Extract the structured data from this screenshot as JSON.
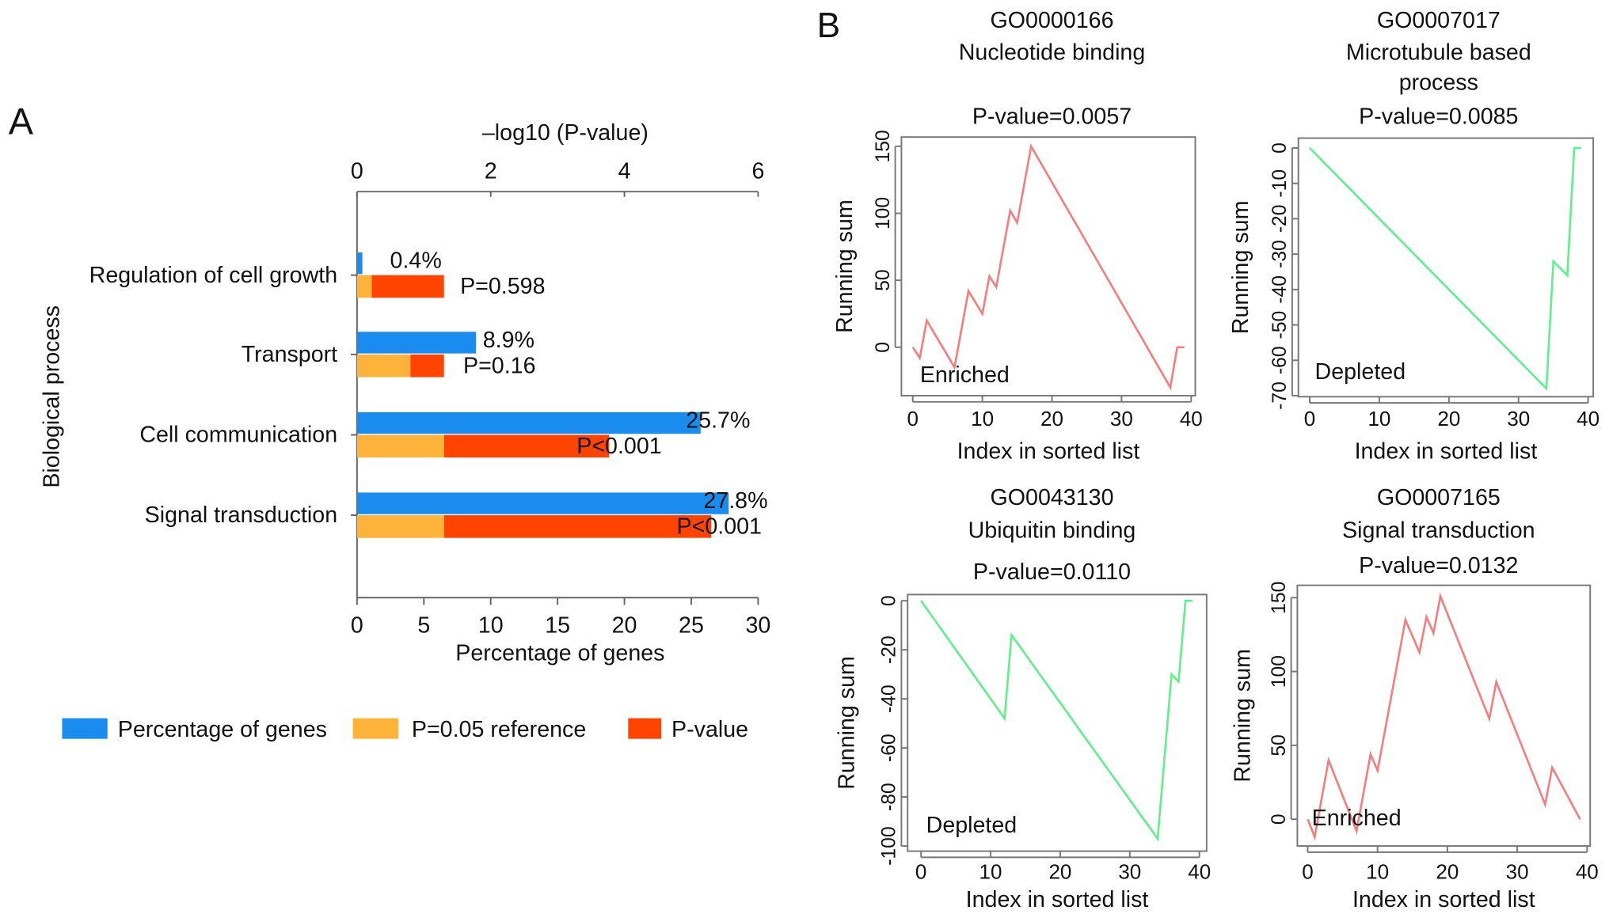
{
  "panel_labels": {
    "a": "A",
    "b": "B"
  },
  "chart_data": [
    {
      "type": "bar",
      "orientation": "horizontal",
      "top_axis_title": "–log10 (P-value)",
      "top_axis_ticks": [
        0,
        2,
        4,
        6
      ],
      "top_axis_range": [
        0,
        6
      ],
      "xlabel": "Percentage of genes",
      "x_ticks": [
        0,
        5,
        10,
        15,
        20,
        25,
        30
      ],
      "x_range": [
        0,
        30
      ],
      "ylabel": "Biological process",
      "reference_neg_log10_p": 1.301,
      "categories": [
        "Regulation of cell growth",
        "Transport",
        "Cell communication",
        "Signal transduction"
      ],
      "series": [
        {
          "name": "Percentage of genes",
          "color": "#1a8cf0",
          "values": [
            0.4,
            8.9,
            25.7,
            27.8
          ],
          "labels": [
            "0.4%",
            "8.9%",
            "25.7%",
            "27.8%"
          ]
        },
        {
          "name": "P=0.05 reference",
          "color": "#fdb23a"
        },
        {
          "name": "P-value",
          "color": "#ff4300",
          "neg_log10_values": [
            0.22,
            0.8,
            3.77,
            5.3
          ],
          "labels": [
            "P=0.598",
            "P=0.16",
            "P<0.001",
            "P<0.001"
          ]
        }
      ],
      "legend": {
        "position": "bottom",
        "items": [
          "Percentage of genes",
          "P=0.05 reference",
          "P-value"
        ]
      }
    },
    {
      "type": "line",
      "id": "GO0000166",
      "name": "Nucleotide binding",
      "pvalue": "P-value=0.0057",
      "xlabel": "Index in sorted list",
      "ylabel": "Running sum",
      "annotation": "Enriched",
      "color": "#f87c7c",
      "x_ticks": [
        0,
        10,
        20,
        30,
        40
      ],
      "y_ticks": [
        0,
        50,
        100,
        150
      ],
      "points": [
        [
          0,
          0
        ],
        [
          1,
          -8
        ],
        [
          2,
          20
        ],
        [
          6,
          -15
        ],
        [
          8,
          42
        ],
        [
          10,
          25
        ],
        [
          11,
          53
        ],
        [
          12,
          45
        ],
        [
          14,
          102
        ],
        [
          15,
          93
        ],
        [
          17,
          150
        ],
        [
          37,
          -30
        ],
        [
          38,
          0
        ],
        [
          39,
          0
        ]
      ]
    },
    {
      "type": "line",
      "id": "GO0007017",
      "name": "Microtubule based",
      "name2": "process",
      "pvalue": "P-value=0.0085",
      "xlabel": "Index in sorted list",
      "ylabel": "Running sum",
      "annotation": "Depleted",
      "color": "#5ef08a",
      "x_ticks": [
        0,
        10,
        20,
        30,
        40
      ],
      "y_ticks": [
        0,
        -10,
        -20,
        -30,
        -40,
        -50,
        -60,
        -70
      ],
      "points": [
        [
          0,
          0
        ],
        [
          34,
          -68
        ],
        [
          35,
          -32
        ],
        [
          37,
          -36
        ],
        [
          38,
          0
        ],
        [
          39,
          0
        ]
      ]
    },
    {
      "type": "line",
      "id": "GO0043130",
      "name": "Ubiquitin binding",
      "pvalue": "P-value=0.0110",
      "xlabel": "Index in sorted list",
      "ylabel": "Running sum",
      "annotation": "Depleted",
      "color": "#5ef08a",
      "x_ticks": [
        0,
        10,
        20,
        30,
        40
      ],
      "y_ticks": [
        0,
        -20,
        -40,
        -60,
        -80,
        -100
      ],
      "points": [
        [
          0,
          0
        ],
        [
          12,
          -48
        ],
        [
          13,
          -14
        ],
        [
          34,
          -97
        ],
        [
          36,
          -30
        ],
        [
          37,
          -33
        ],
        [
          38,
          0
        ],
        [
          39,
          0
        ]
      ]
    },
    {
      "type": "line",
      "id": "GO0007165",
      "name": "Signal transduction",
      "pvalue": "P-value=0.0132",
      "xlabel": "Index in sorted list",
      "ylabel": "Running sum",
      "annotation": "Enriched",
      "color": "#f87c7c",
      "x_ticks": [
        0,
        10,
        20,
        30,
        40
      ],
      "y_ticks": [
        0,
        50,
        100,
        150
      ],
      "points": [
        [
          0,
          0
        ],
        [
          1,
          -12
        ],
        [
          3,
          40
        ],
        [
          7,
          -8
        ],
        [
          9,
          44
        ],
        [
          10,
          33
        ],
        [
          14,
          135
        ],
        [
          16,
          113
        ],
        [
          17,
          137
        ],
        [
          18,
          126
        ],
        [
          19,
          151
        ],
        [
          26,
          68
        ],
        [
          27,
          93
        ],
        [
          34,
          10
        ],
        [
          35,
          35
        ],
        [
          39,
          0
        ]
      ]
    }
  ]
}
